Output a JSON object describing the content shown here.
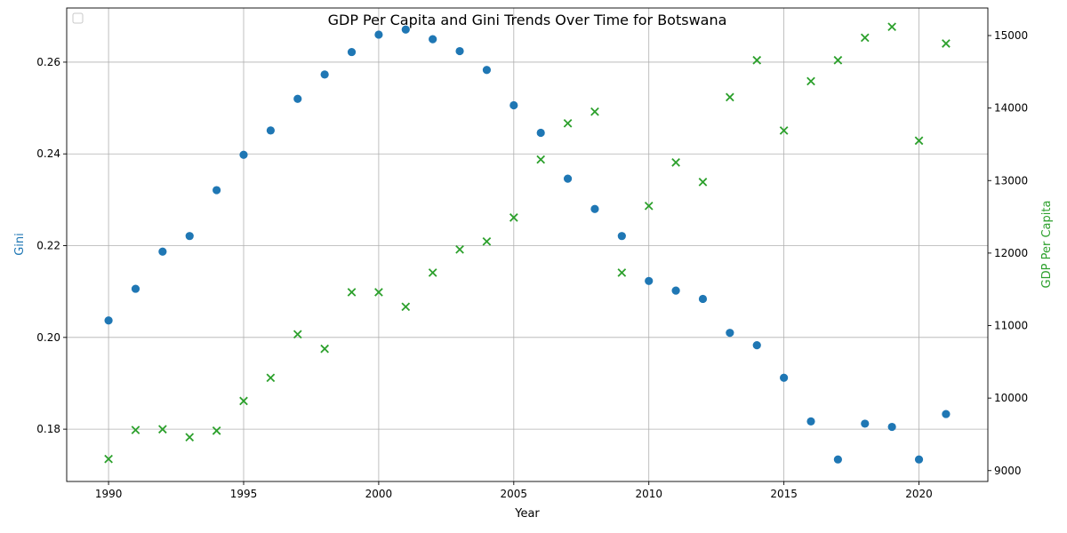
{
  "chart_data": {
    "type": "scatter",
    "title": "GDP Per Capita and Gini Trends Over Time for Botswana",
    "xlabel": "Year",
    "ylabel_left": "Gini",
    "ylabel_right": "GDP Per Capita",
    "xlim": [
      1988.45,
      2022.55
    ],
    "ylim_left": [
      0.1686,
      0.2718
    ],
    "ylim_right": [
      8850,
      15380
    ],
    "x_ticks": [
      1990,
      1995,
      2000,
      2005,
      2010,
      2015,
      2020
    ],
    "y_ticks_left": [
      0.18,
      0.2,
      0.22,
      0.24,
      0.26
    ],
    "y_ticks_right": [
      9000,
      10000,
      11000,
      12000,
      13000,
      14000,
      15000
    ],
    "grid": true,
    "legend": "top-left (empty)",
    "colors": {
      "gini": "#1f77b4",
      "gdp": "#2ca02c",
      "left_label": "#1f77b4",
      "right_label": "#2ca02c"
    },
    "x": [
      1990,
      1991,
      1992,
      1993,
      1994,
      1995,
      1996,
      1997,
      1998,
      1999,
      2000,
      2001,
      2002,
      2003,
      2004,
      2005,
      2006,
      2007,
      2008,
      2009,
      2010,
      2011,
      2012,
      2013,
      2014,
      2015,
      2016,
      2017,
      2018,
      2019,
      2020,
      2021
    ],
    "series": [
      {
        "marker": "circle",
        "axis": "left",
        "values": [
          0.2037,
          0.2106,
          0.2187,
          0.2221,
          0.2321,
          0.2398,
          0.2451,
          0.252,
          0.2573,
          0.2622,
          0.266,
          0.2671,
          0.265,
          0.2624,
          0.2583,
          0.2506,
          0.2446,
          0.2346,
          0.228,
          0.2221,
          0.2123,
          0.2102,
          0.2084,
          0.201,
          0.1983,
          0.1912,
          0.1817,
          0.1734,
          0.1812,
          0.1805,
          0.1734,
          0.1833
        ]
      },
      {
        "marker": "x",
        "axis": "right",
        "values": [
          9160,
          9560,
          9570,
          9460,
          9550,
          9960,
          10280,
          10880,
          10680,
          11460,
          11460,
          11260,
          11730,
          12050,
          12160,
          12490,
          13290,
          13790,
          13950,
          11730,
          12650,
          13250,
          12980,
          14150,
          14660,
          13690,
          14370,
          14660,
          14970,
          15120,
          13550,
          14890
        ]
      }
    ]
  }
}
